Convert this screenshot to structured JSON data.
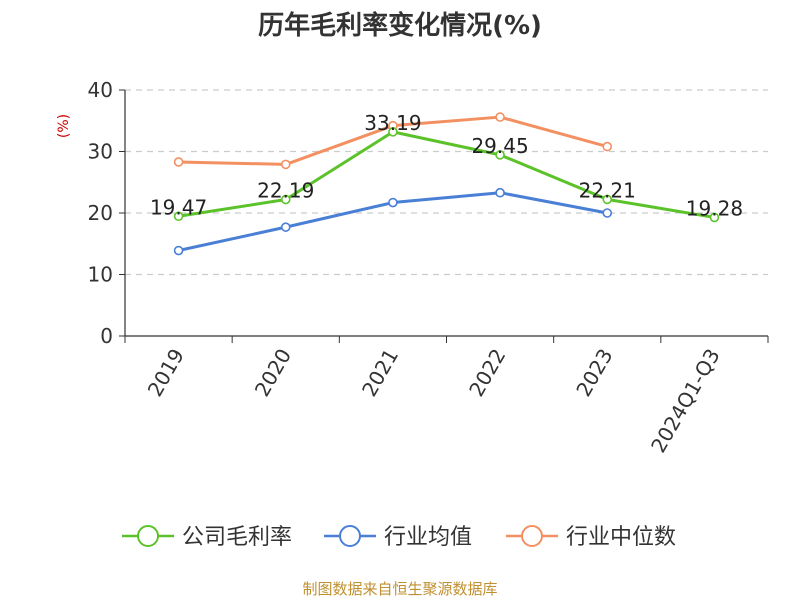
{
  "chart_data": {
    "type": "line",
    "title": "历年毛利率变化情况(%)",
    "ylabel": "(%)",
    "xlabel": "",
    "ylim": [
      0,
      40
    ],
    "yticks": [
      0,
      10,
      20,
      30,
      40
    ],
    "grid": "horizontal dashed",
    "categories": [
      "2019",
      "2020",
      "2021",
      "2022",
      "2023",
      "2024Q1-Q3"
    ],
    "series": [
      {
        "name": "公司毛利率",
        "color": "#5cc22a",
        "values": [
          19.47,
          22.19,
          33.19,
          29.45,
          22.21,
          19.28
        ],
        "labels": [
          "19.47",
          "22.19",
          "33.19",
          "29.45",
          "22.21",
          "19.28"
        ]
      },
      {
        "name": "行业均值",
        "color": "#4a7fd6",
        "values": [
          13.9,
          17.7,
          21.7,
          23.3,
          20.0,
          null
        ]
      },
      {
        "name": "行业中位数",
        "color": "#f39061",
        "values": [
          28.3,
          27.9,
          34.2,
          35.6,
          30.8,
          null
        ]
      }
    ],
    "legend_position": "bottom"
  },
  "footer": {
    "source": "制图数据来自恒生聚源数据库"
  }
}
